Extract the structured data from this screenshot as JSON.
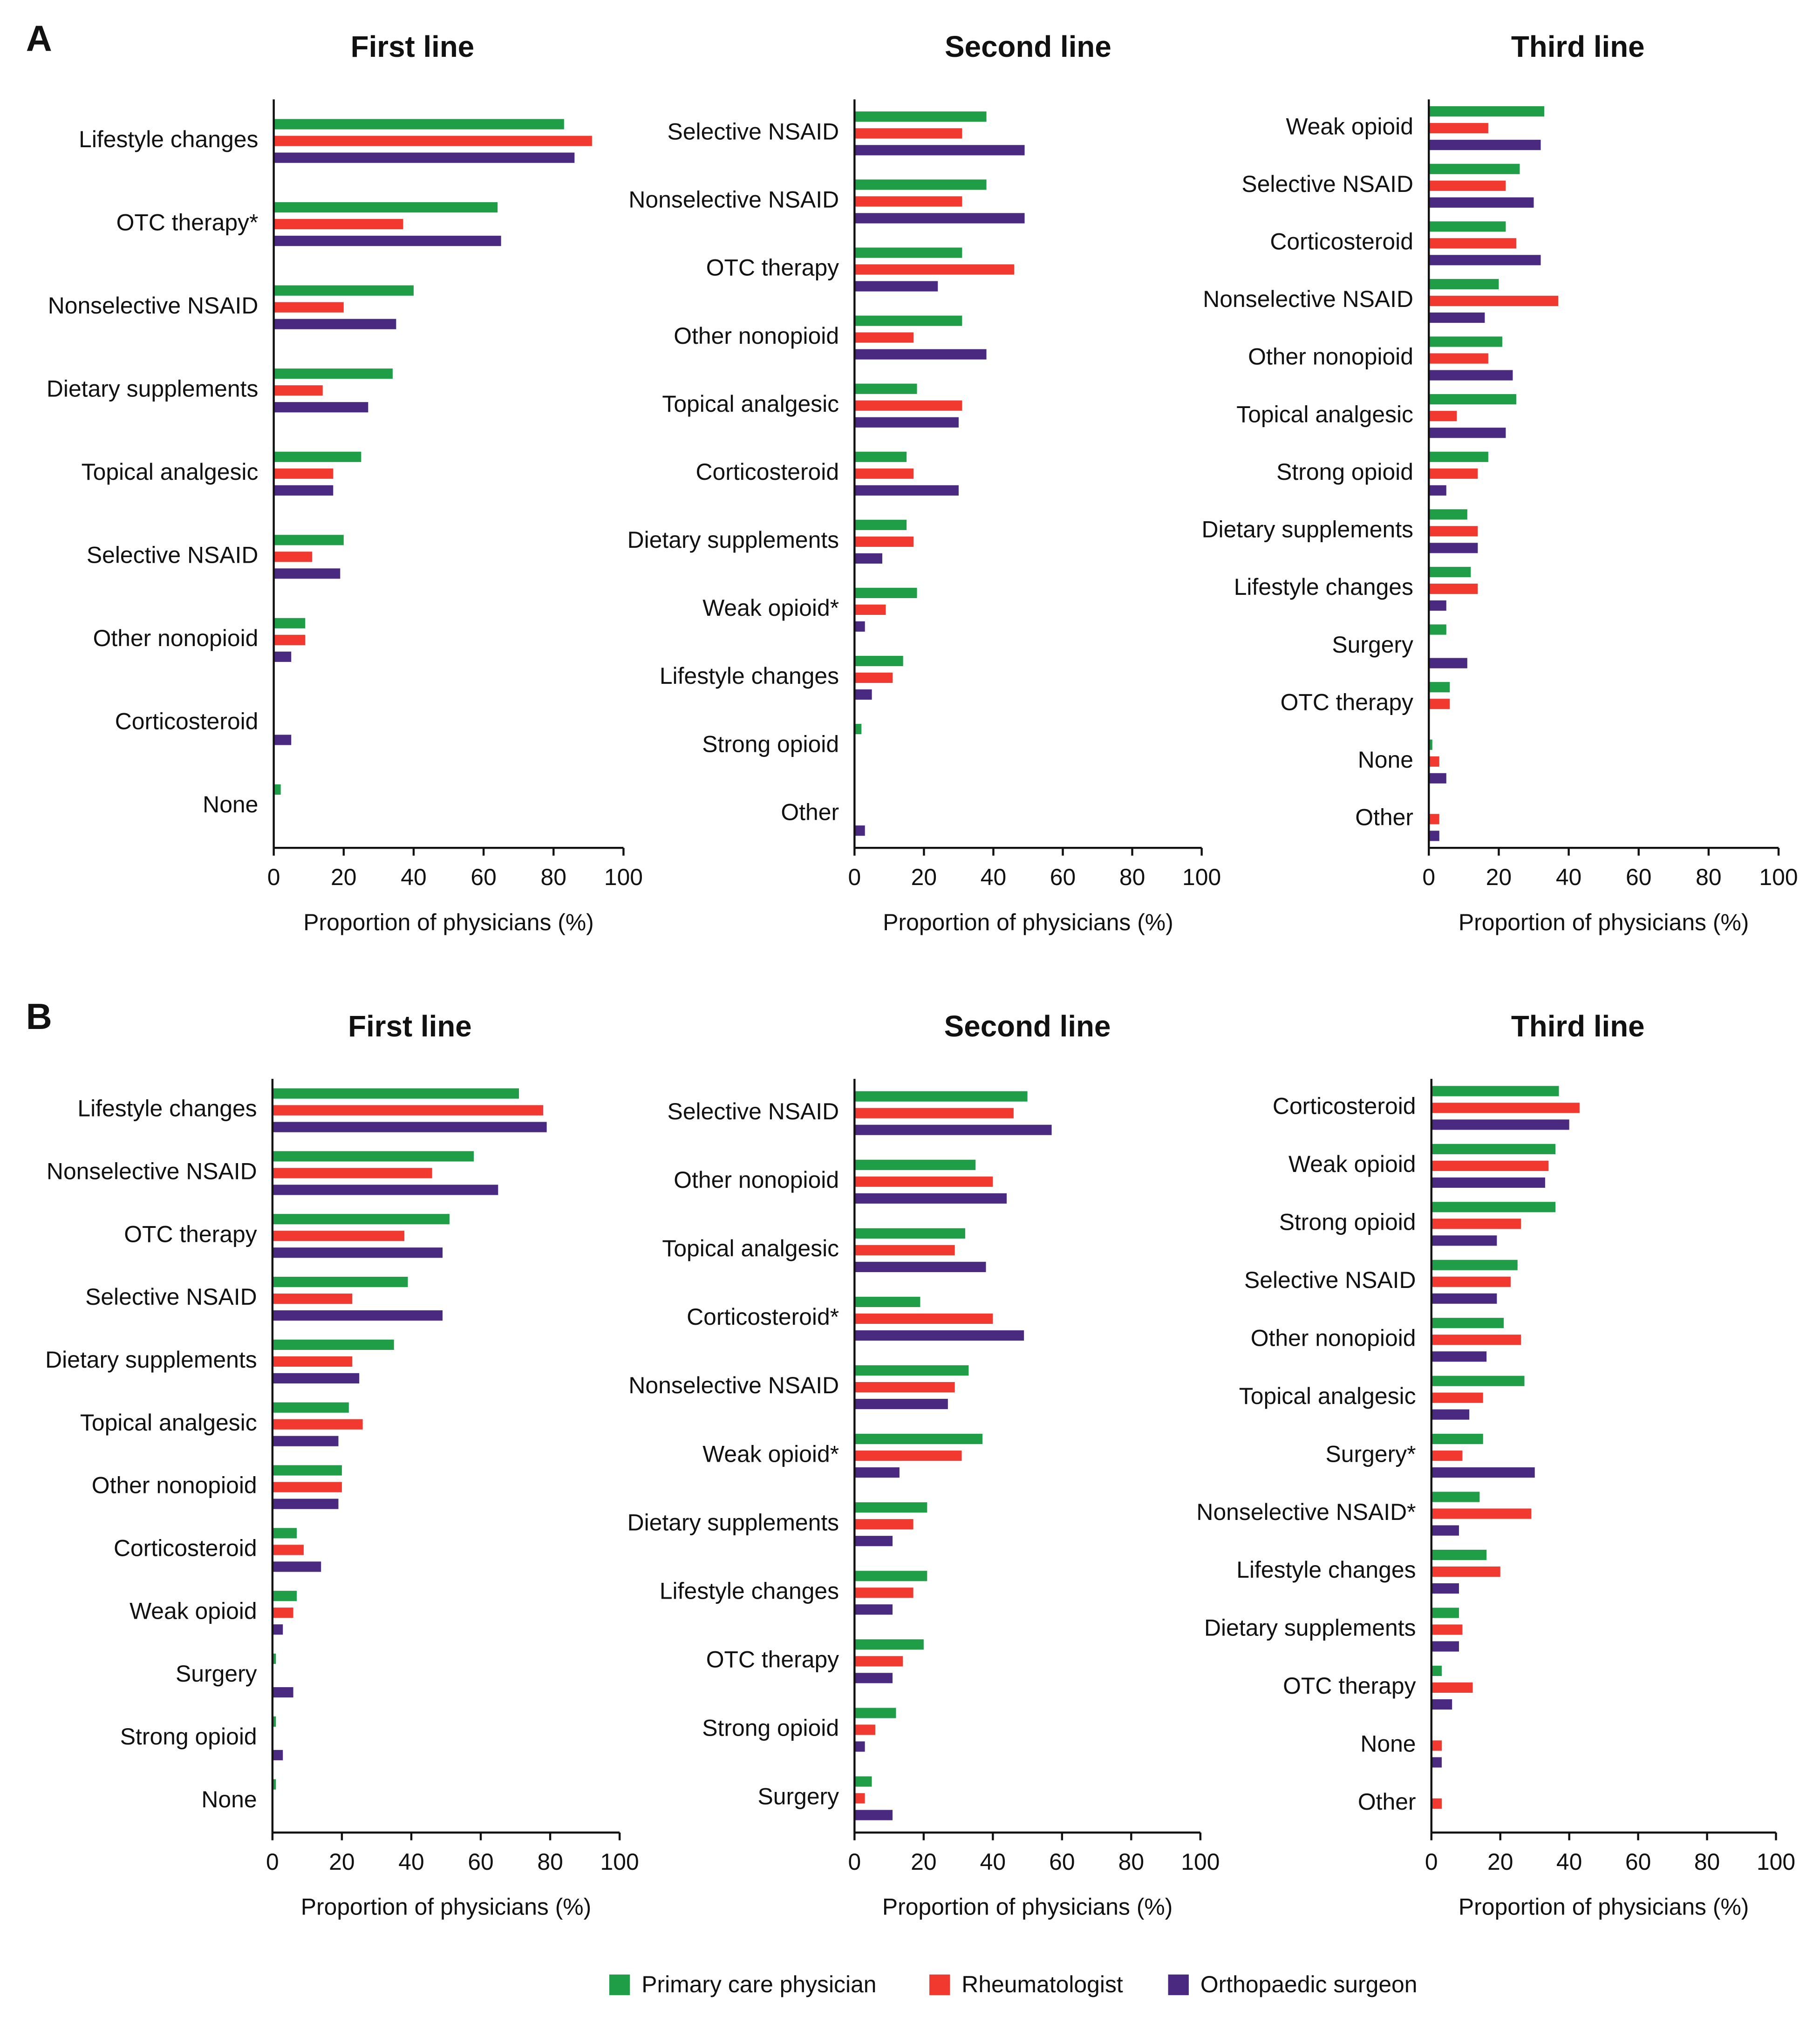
{
  "chart_data": [
    {
      "type": "bar",
      "panel": "A",
      "title": "First line",
      "x_label": "Proportion of physicians (%)",
      "xlim": [
        0,
        100
      ],
      "xticks": [
        0,
        20,
        40,
        60,
        80,
        100
      ],
      "categories": [
        "Lifestyle changes",
        "OTC therapy*",
        "Nonselective NSAID",
        "Dietary supplements",
        "Topical analgesic",
        "Selective NSAID",
        "Other nonopioid",
        "Corticosteroid",
        "None"
      ],
      "series": [
        {
          "name": "Primary care physician",
          "color": "#1f9e47",
          "values": [
            83,
            64,
            40,
            34,
            25,
            20,
            9,
            0,
            2
          ]
        },
        {
          "name": "Rheumatologist",
          "color": "#f2392f",
          "values": [
            91,
            37,
            20,
            14,
            17,
            11,
            9,
            0,
            0
          ]
        },
        {
          "name": "Orthopaedic surgeon",
          "color": "#4a2a80",
          "values": [
            86,
            65,
            35,
            27,
            17,
            19,
            5,
            5,
            0
          ]
        }
      ]
    },
    {
      "type": "bar",
      "title": "Second line",
      "x_label": "Proportion of physicians (%)",
      "xlim": [
        0,
        100
      ],
      "xticks": [
        0,
        20,
        40,
        60,
        80,
        100
      ],
      "categories": [
        "Selective NSAID",
        "Nonselective NSAID",
        "OTC therapy",
        "Other nonopioid",
        "Topical analgesic",
        "Corticosteroid",
        "Dietary supplements",
        "Weak opioid*",
        "Lifestyle changes",
        "Strong opioid",
        "Other"
      ],
      "series": [
        {
          "name": "Primary care physician",
          "color": "#1f9e47",
          "values": [
            38,
            38,
            31,
            31,
            18,
            15,
            15,
            18,
            14,
            2,
            0
          ]
        },
        {
          "name": "Rheumatologist",
          "color": "#f2392f",
          "values": [
            31,
            31,
            46,
            17,
            31,
            17,
            17,
            9,
            11,
            0,
            0
          ]
        },
        {
          "name": "Orthopaedic surgeon",
          "color": "#4a2a80",
          "values": [
            49,
            49,
            24,
            38,
            30,
            30,
            8,
            3,
            5,
            0,
            3
          ]
        }
      ]
    },
    {
      "type": "bar",
      "title": "Third line",
      "x_label": "Proportion of physicians (%)",
      "xlim": [
        0,
        100
      ],
      "xticks": [
        0,
        20,
        40,
        60,
        80,
        100
      ],
      "categories": [
        "Weak opioid",
        "Selective NSAID",
        "Corticosteroid",
        "Nonselective NSAID",
        "Other nonopioid",
        "Topical analgesic",
        "Strong opioid",
        "Dietary supplements",
        "Lifestyle changes",
        "Surgery",
        "OTC therapy",
        "None",
        "Other"
      ],
      "series": [
        {
          "name": "Primary care physician",
          "color": "#1f9e47",
          "values": [
            33,
            26,
            22,
            20,
            21,
            25,
            17,
            11,
            12,
            5,
            6,
            1,
            0
          ]
        },
        {
          "name": "Rheumatologist",
          "color": "#f2392f",
          "values": [
            17,
            22,
            25,
            37,
            17,
            8,
            14,
            14,
            14,
            0,
            6,
            3,
            3
          ]
        },
        {
          "name": "Orthopaedic surgeon",
          "color": "#4a2a80",
          "values": [
            32,
            30,
            32,
            16,
            24,
            22,
            5,
            14,
            5,
            11,
            0,
            5,
            3
          ]
        }
      ]
    },
    {
      "type": "bar",
      "panel": "B",
      "title": "First line",
      "x_label": "Proportion of physicians (%)",
      "xlim": [
        0,
        100
      ],
      "xticks": [
        0,
        20,
        40,
        60,
        80,
        100
      ],
      "categories": [
        "Lifestyle changes",
        "Nonselective NSAID",
        "OTC therapy",
        "Selective NSAID",
        "Dietary supplements",
        "Topical analgesic",
        "Other nonopioid",
        "Corticosteroid",
        "Weak opioid",
        "Surgery",
        "Strong opioid",
        "None"
      ],
      "series": [
        {
          "name": "Primary care physician",
          "color": "#1f9e47",
          "values": [
            71,
            58,
            51,
            39,
            35,
            22,
            20,
            7,
            7,
            1,
            1,
            1
          ]
        },
        {
          "name": "Rheumatologist",
          "color": "#f2392f",
          "values": [
            78,
            46,
            38,
            23,
            23,
            26,
            20,
            9,
            6,
            0,
            0,
            0
          ]
        },
        {
          "name": "Orthopaedic surgeon",
          "color": "#4a2a80",
          "values": [
            79,
            65,
            49,
            49,
            25,
            19,
            19,
            14,
            3,
            6,
            3,
            0
          ]
        }
      ]
    },
    {
      "type": "bar",
      "title": "Second line",
      "x_label": "Proportion of physicians (%)",
      "xlim": [
        0,
        100
      ],
      "xticks": [
        0,
        20,
        40,
        60,
        80,
        100
      ],
      "categories": [
        "Selective NSAID",
        "Other nonopioid",
        "Topical analgesic",
        "Corticosteroid*",
        "Nonselective NSAID",
        "Weak opioid*",
        "Dietary supplements",
        "Lifestyle changes",
        "OTC therapy",
        "Strong opioid",
        "Surgery"
      ],
      "series": [
        {
          "name": "Primary care physician",
          "color": "#1f9e47",
          "values": [
            50,
            35,
            32,
            19,
            33,
            37,
            21,
            21,
            20,
            12,
            5
          ]
        },
        {
          "name": "Rheumatologist",
          "color": "#f2392f",
          "values": [
            46,
            40,
            29,
            40,
            29,
            31,
            17,
            17,
            14,
            6,
            3
          ]
        },
        {
          "name": "Orthopaedic surgeon",
          "color": "#4a2a80",
          "values": [
            57,
            44,
            38,
            49,
            27,
            13,
            11,
            11,
            11,
            3,
            11
          ]
        }
      ]
    },
    {
      "type": "bar",
      "title": "Third line",
      "x_label": "Proportion of physicians (%)",
      "xlim": [
        0,
        100
      ],
      "xticks": [
        0,
        20,
        40,
        60,
        80,
        100
      ],
      "categories": [
        "Corticosteroid",
        "Weak opioid",
        "Strong opioid",
        "Selective NSAID",
        "Other nonopioid",
        "Topical analgesic",
        "Surgery*",
        "Nonselective NSAID*",
        "Lifestyle changes",
        "Dietary supplements",
        "OTC therapy",
        "None",
        "Other"
      ],
      "series": [
        {
          "name": "Primary care physician",
          "color": "#1f9e47",
          "values": [
            37,
            36,
            36,
            25,
            21,
            27,
            15,
            14,
            16,
            8,
            3,
            0,
            0
          ]
        },
        {
          "name": "Rheumatologist",
          "color": "#f2392f",
          "values": [
            43,
            34,
            26,
            23,
            26,
            15,
            9,
            29,
            20,
            9,
            12,
            3,
            3
          ]
        },
        {
          "name": "Orthopaedic surgeon",
          "color": "#4a2a80",
          "values": [
            40,
            33,
            19,
            19,
            16,
            11,
            30,
            8,
            8,
            8,
            6,
            3,
            0
          ]
        }
      ]
    }
  ]
}
